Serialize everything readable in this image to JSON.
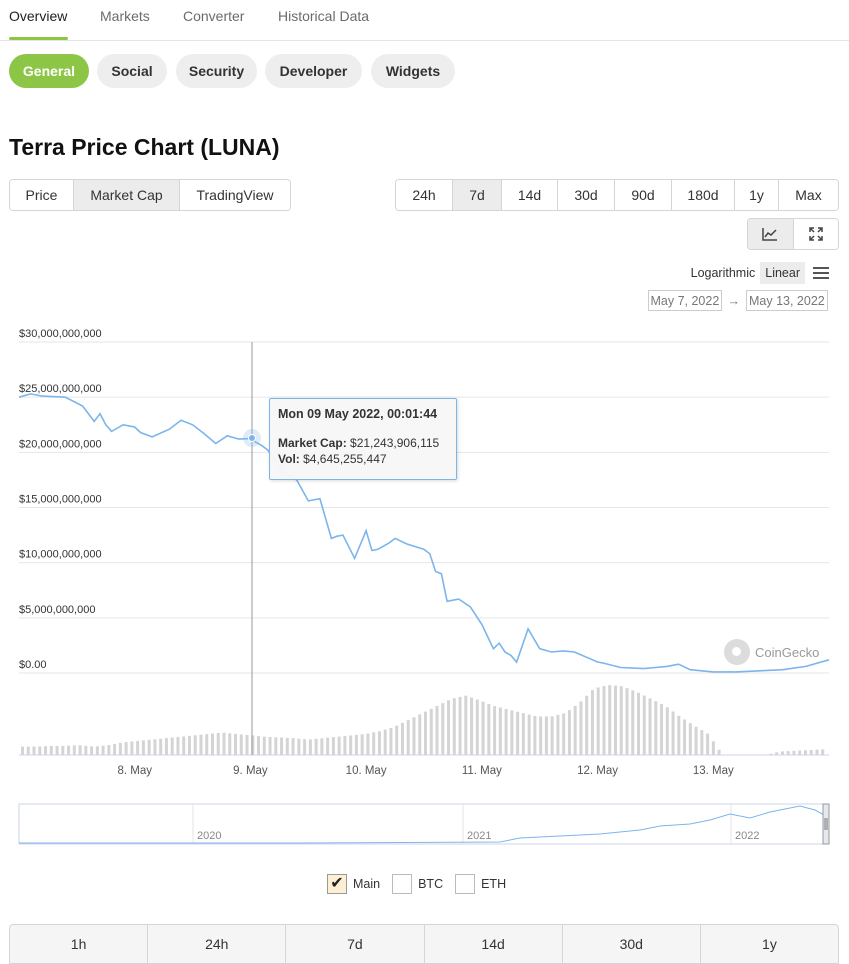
{
  "nav": {
    "tabs": [
      "Overview",
      "Markets",
      "Converter",
      "Historical Data"
    ],
    "active": "Overview"
  },
  "subnav": {
    "pills": [
      "General",
      "Social",
      "Security",
      "Developer",
      "Widgets"
    ],
    "active": "General"
  },
  "title": "Terra Price Chart (LUNA)",
  "chart_types": {
    "options": [
      "Price",
      "Market Cap",
      "TradingView"
    ],
    "active": "Market Cap"
  },
  "ranges": {
    "options": [
      "24h",
      "7d",
      "14d",
      "30d",
      "90d",
      "180d",
      "1y",
      "Max"
    ],
    "active": "7d"
  },
  "view_icons": [
    "line-chart-icon",
    "expand-icon"
  ],
  "scale": {
    "log_label": "Logarithmic",
    "linear_label": "Linear",
    "active": "Linear"
  },
  "date_range": {
    "from": "May 7, 2022",
    "to": "May 13, 2022",
    "arrow": "→"
  },
  "tooltip": {
    "title": "Mon 09 May 2022, 00:01:44",
    "mcap_label": "Market Cap:",
    "mcap_value": "$21,243,906,115",
    "vol_label": "Vol:",
    "vol_value": "$4,645,255,447"
  },
  "watermark": "CoinGecko",
  "colors": {
    "accent": "#8dc647",
    "line": "#7cb5ec",
    "volume": "#cfcfcf"
  },
  "chart_data": {
    "type": "line",
    "ylim": [
      0,
      30000000000
    ],
    "yticks": [
      "$30,000,000,000",
      "$25,000,000,000",
      "$20,000,000,000",
      "$15,000,000,000",
      "$10,000,000,000",
      "$5,000,000,000",
      "$0.00"
    ],
    "ytick_values": [
      30000000000,
      25000000000,
      20000000000,
      15000000000,
      10000000000,
      5000000000,
      0
    ],
    "xlim": [
      7.0,
      14.0
    ],
    "xticks": [
      "8. May",
      "9. May",
      "10. May",
      "11. May",
      "12. May",
      "13. May"
    ],
    "xtick_values": [
      8,
      9,
      10,
      11,
      12,
      13
    ],
    "grid": true,
    "series": [
      {
        "x": [
          7.0,
          7.1,
          7.2,
          7.4,
          7.55,
          7.65,
          7.7,
          7.75,
          7.8,
          7.9,
          8.0,
          8.05,
          8.15,
          8.3,
          8.4,
          8.5,
          8.6,
          8.7,
          8.8,
          8.9,
          9.0,
          9.05,
          9.1,
          9.15,
          9.2,
          9.3,
          9.4,
          9.5,
          9.6,
          9.7,
          9.75,
          9.8,
          9.9,
          10.0,
          10.05,
          10.1,
          10.2,
          10.25,
          10.35,
          10.5,
          10.55,
          10.6,
          10.65,
          10.7,
          10.8,
          10.9,
          11.0,
          11.05,
          11.1,
          11.15,
          11.2,
          11.25,
          11.3,
          11.4,
          11.5,
          11.6,
          11.7,
          11.8,
          12.0,
          12.05,
          12.2,
          12.4,
          12.5,
          12.6,
          12.7,
          12.8,
          13.0,
          13.2,
          13.4,
          13.6,
          13.8,
          14.0
        ],
        "values": [
          25000000000,
          25300000000,
          25100000000,
          25000000000,
          24200000000,
          22800000000,
          23500000000,
          22500000000,
          21900000000,
          22500000000,
          22300000000,
          21800000000,
          21400000000,
          22100000000,
          22900000000,
          22500000000,
          21700000000,
          20800000000,
          21500000000,
          21200000000,
          21243906115,
          20900000000,
          20600000000,
          20200000000,
          19500000000,
          18000000000,
          17500000000,
          15600000000,
          15800000000,
          12200000000,
          12400000000,
          12500000000,
          10400000000,
          12900000000,
          11100000000,
          11200000000,
          11800000000,
          12200000000,
          11700000000,
          11200000000,
          10800000000,
          9200000000,
          9000000000,
          6500000000,
          6700000000,
          6000000000,
          4400000000,
          3300000000,
          2200000000,
          2700000000,
          1900000000,
          1600000000,
          1000000000,
          4000000000,
          2200000000,
          1900000000,
          2000000000,
          1900000000,
          1000000000,
          900000000,
          500000000,
          400000000,
          500000000,
          600000000,
          800000000,
          300000000,
          100000000,
          100000000,
          200000000,
          300000000,
          600000000,
          1200000000
        ]
      }
    ],
    "volume_relative": [
      0.12,
      0.12,
      0.13,
      0.13,
      0.14,
      0.12,
      0.14,
      0.18,
      0.2,
      0.22,
      0.24,
      0.26,
      0.28,
      0.3,
      0.32,
      0.3,
      0.28,
      0.26,
      0.25,
      0.24,
      0.22,
      0.24,
      0.26,
      0.28,
      0.3,
      0.34,
      0.4,
      0.5,
      0.6,
      0.7,
      0.8,
      0.85,
      0.78,
      0.7,
      0.65,
      0.6,
      0.55,
      0.55,
      0.6,
      0.75,
      0.95,
      1.0,
      0.98,
      0.9,
      0.8,
      0.7,
      0.55,
      0.42,
      0.3,
      0.0,
      0.0,
      0.0,
      0.0,
      0.05,
      0.06,
      0.07,
      0.08
    ],
    "navigator_labels": [
      "2020",
      "2021",
      "2022"
    ]
  },
  "legend": {
    "items": [
      {
        "label": "Main",
        "checked": true
      },
      {
        "label": "BTC",
        "checked": false
      },
      {
        "label": "ETH",
        "checked": false
      }
    ]
  },
  "bottom_ranges": [
    "1h",
    "24h",
    "7d",
    "14d",
    "30d",
    "1y"
  ]
}
